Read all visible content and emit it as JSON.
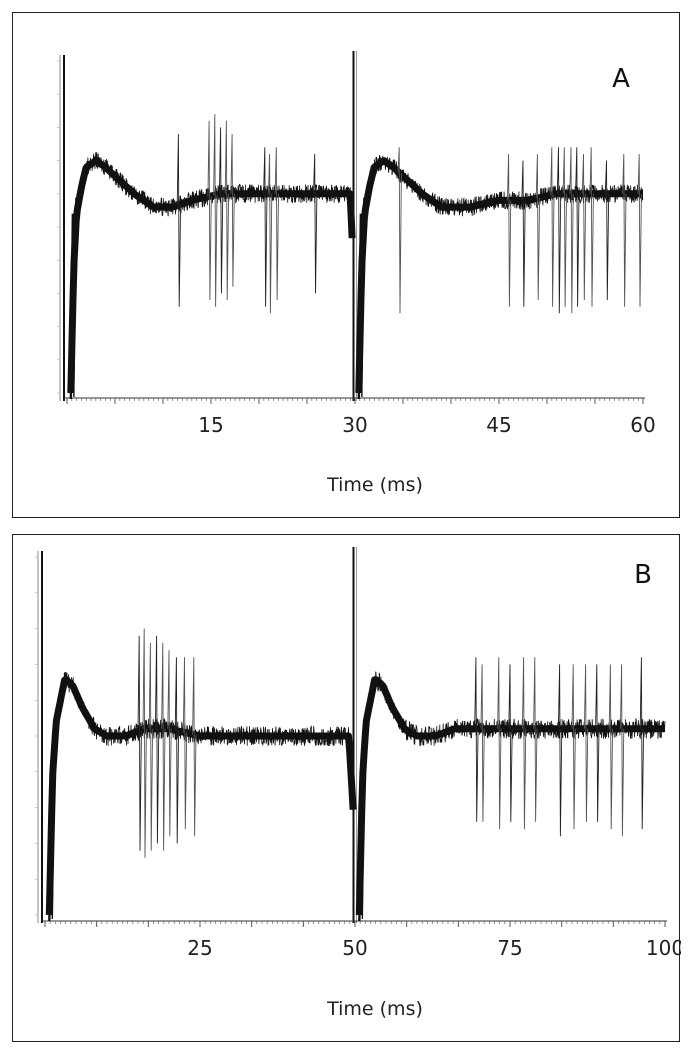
{
  "chart_data": [
    {
      "type": "line",
      "panel_label": "A",
      "xlabel": "Time (ms)",
      "ylabel": "",
      "x_ticks": [
        "15",
        "30",
        "45",
        "60"
      ],
      "xlim": [
        0,
        60
      ],
      "ylim": [
        -0.25,
        0.25
      ],
      "segment_break_at": 30,
      "sweeps_overlaid": true,
      "trace_color": "#111111",
      "series": [
        {
          "name": "",
          "x": [
            0.4,
            0.7,
            1.0,
            1.5,
            2.0,
            3.0,
            4.0,
            5.5,
            7.0,
            9.0,
            11.0,
            13.0,
            16.0,
            19.0,
            22.0,
            25.0,
            28.0,
            29.5,
            30.4,
            30.7,
            31.0,
            31.5,
            32.0,
            33.0,
            34.0,
            35.5,
            37.0,
            39.0,
            42.0,
            45.0,
            48.0,
            51.0,
            54.0,
            57.0,
            60.0
          ],
          "y": [
            -0.25,
            -0.06,
            0.02,
            0.06,
            0.09,
            0.1,
            0.09,
            0.07,
            0.05,
            0.03,
            0.03,
            0.04,
            0.05,
            0.05,
            0.05,
            0.05,
            0.05,
            0.05,
            -0.25,
            -0.06,
            0.02,
            0.06,
            0.09,
            0.1,
            0.09,
            0.07,
            0.05,
            0.03,
            0.03,
            0.04,
            0.04,
            0.05,
            0.05,
            0.05,
            0.05
          ]
        }
      ],
      "spikes": [
        {
          "x": 11.6,
          "low": -0.12,
          "high": 0.14
        },
        {
          "x": 14.8,
          "low": -0.11,
          "high": 0.16
        },
        {
          "x": 15.4,
          "low": -0.12,
          "high": 0.17
        },
        {
          "x": 16.0,
          "low": -0.1,
          "high": 0.15
        },
        {
          "x": 16.6,
          "low": -0.11,
          "high": 0.16
        },
        {
          "x": 17.2,
          "low": -0.09,
          "high": 0.14
        },
        {
          "x": 20.6,
          "low": -0.12,
          "high": 0.12
        },
        {
          "x": 21.1,
          "low": -0.13,
          "high": 0.11
        },
        {
          "x": 21.8,
          "low": -0.11,
          "high": 0.12
        },
        {
          "x": 25.8,
          "low": -0.1,
          "high": 0.11
        },
        {
          "x": 34.6,
          "low": -0.13,
          "high": 0.12
        },
        {
          "x": 46.0,
          "low": -0.12,
          "high": 0.11
        },
        {
          "x": 47.5,
          "low": -0.12,
          "high": 0.1
        },
        {
          "x": 49.0,
          "low": -0.11,
          "high": 0.11
        },
        {
          "x": 50.5,
          "low": -0.12,
          "high": 0.12
        },
        {
          "x": 51.2,
          "low": -0.13,
          "high": 0.12
        },
        {
          "x": 51.8,
          "low": -0.12,
          "high": 0.12
        },
        {
          "x": 52.5,
          "low": -0.13,
          "high": 0.12
        },
        {
          "x": 53.1,
          "low": -0.12,
          "high": 0.12
        },
        {
          "x": 53.8,
          "low": -0.11,
          "high": 0.11
        },
        {
          "x": 54.6,
          "low": -0.12,
          "high": 0.12
        },
        {
          "x": 56.2,
          "low": -0.11,
          "high": 0.1
        },
        {
          "x": 58.0,
          "low": -0.12,
          "high": 0.11
        },
        {
          "x": 59.6,
          "low": -0.12,
          "high": 0.11
        }
      ]
    },
    {
      "type": "line",
      "panel_label": "B",
      "xlabel": "Time (ms)",
      "ylabel": "",
      "x_ticks": [
        "25",
        "50",
        "75",
        "100"
      ],
      "xlim": [
        0,
        100
      ],
      "ylim": [
        -0.25,
        0.25
      ],
      "segment_break_at": 50,
      "sweeps_overlaid": true,
      "trace_color": "#111111",
      "series": [
        {
          "name": "",
          "x": [
            0.7,
            1.2,
            1.8,
            2.5,
            3.2,
            4.5,
            6.0,
            8.0,
            10.0,
            13.0,
            16.0,
            20.0,
            25.0,
            30.0,
            35.0,
            40.0,
            45.0,
            49.0,
            50.7,
            51.2,
            51.8,
            52.5,
            53.2,
            54.5,
            56.0,
            58.0,
            60.0,
            63.0,
            66.0,
            70.0,
            75.0,
            80.0,
            85.0,
            90.0,
            95.0,
            100.0
          ],
          "y": [
            -0.25,
            -0.06,
            0.02,
            0.05,
            0.08,
            0.07,
            0.04,
            0.01,
            0.0,
            0.0,
            0.01,
            0.01,
            0.0,
            0.0,
            0.0,
            0.0,
            0.0,
            0.0,
            -0.25,
            -0.06,
            0.02,
            0.05,
            0.08,
            0.07,
            0.04,
            0.01,
            0.0,
            0.0,
            0.01,
            0.01,
            0.01,
            0.01,
            0.01,
            0.01,
            0.01,
            0.01
          ]
        }
      ],
      "spikes": [
        {
          "x": 15.2,
          "low": -0.16,
          "high": 0.14
        },
        {
          "x": 16.0,
          "low": -0.17,
          "high": 0.15
        },
        {
          "x": 17.0,
          "low": -0.16,
          "high": 0.13
        },
        {
          "x": 18.0,
          "low": -0.15,
          "high": 0.14
        },
        {
          "x": 19.0,
          "low": -0.16,
          "high": 0.13
        },
        {
          "x": 20.0,
          "low": -0.14,
          "high": 0.12
        },
        {
          "x": 21.2,
          "low": -0.15,
          "high": 0.11
        },
        {
          "x": 22.5,
          "low": -0.13,
          "high": 0.11
        },
        {
          "x": 24.0,
          "low": -0.14,
          "high": 0.11
        },
        {
          "x": 69.5,
          "low": -0.12,
          "high": 0.11
        },
        {
          "x": 70.5,
          "low": -0.12,
          "high": 0.1
        },
        {
          "x": 73.2,
          "low": -0.13,
          "high": 0.11
        },
        {
          "x": 75.0,
          "low": -0.12,
          "high": 0.1
        },
        {
          "x": 77.2,
          "low": -0.13,
          "high": 0.11
        },
        {
          "x": 79.0,
          "low": -0.12,
          "high": 0.11
        },
        {
          "x": 83.0,
          "low": -0.14,
          "high": 0.1
        },
        {
          "x": 85.2,
          "low": -0.13,
          "high": 0.1
        },
        {
          "x": 87.2,
          "low": -0.12,
          "high": 0.1
        },
        {
          "x": 89.0,
          "low": -0.12,
          "high": 0.1
        },
        {
          "x": 91.2,
          "low": -0.13,
          "high": 0.1
        },
        {
          "x": 93.0,
          "low": -0.14,
          "high": 0.1
        },
        {
          "x": 96.2,
          "low": -0.13,
          "high": 0.11
        }
      ]
    }
  ]
}
